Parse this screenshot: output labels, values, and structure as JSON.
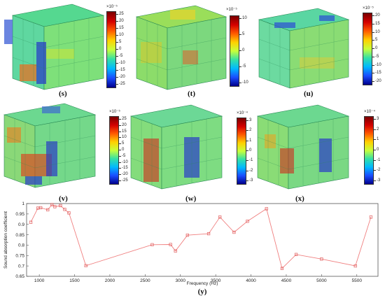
{
  "panels": [
    {
      "label": "(s)",
      "exponent": "×10⁻⁵",
      "ticks": [
        "25",
        "20",
        "15",
        "10",
        "5",
        "0",
        "-5",
        "-10",
        "-15",
        "-20",
        "-25"
      ]
    },
    {
      "label": "(t)",
      "exponent": "×10⁻⁵",
      "ticks": [
        "10",
        "5",
        "0",
        "-5",
        "-10"
      ]
    },
    {
      "label": "(u)",
      "exponent": "×10⁻⁵",
      "ticks": [
        "20",
        "15",
        "10",
        "5",
        "0",
        "-5",
        "-10",
        "-15",
        "-20"
      ]
    },
    {
      "label": "(v)",
      "exponent": "×10⁻⁵",
      "ticks": [
        "25",
        "20",
        "15",
        "10",
        "5",
        "0",
        "-5",
        "-10",
        "-15",
        "-20",
        "-25"
      ]
    },
    {
      "label": "(w)",
      "exponent": "×10⁻⁴",
      "ticks": [
        "3",
        "2",
        "1",
        "0",
        "-1",
        "-2",
        "-3"
      ]
    },
    {
      "label": "(x)",
      "exponent": "×10⁻⁴",
      "ticks": [
        "3",
        "2",
        "1",
        "0",
        "-1",
        "-2",
        "-3"
      ]
    }
  ],
  "colors": {
    "line": "#f08080",
    "marker": "#e06060"
  },
  "chart_data": {
    "type": "line",
    "label": "(y)",
    "xlabel": "Frequency (Hz)",
    "ylabel": "Sound absorption coefficient",
    "xticks": [
      1000,
      1500,
      2000,
      2500,
      3000,
      3500,
      4000,
      4500,
      5000,
      5500
    ],
    "yticks": [
      0.65,
      0.7,
      0.75,
      0.8,
      0.85,
      0.9,
      0.95,
      1
    ],
    "xlim": [
      820,
      5800
    ],
    "ylim": [
      0.65,
      1
    ],
    "grid": false,
    "x": [
      880,
      980,
      1020,
      1120,
      1180,
      1220,
      1300,
      1360,
      1420,
      1660,
      2600,
      2860,
      2930,
      3100,
      3400,
      3560,
      3760,
      3950,
      4220,
      4440,
      4640,
      5000,
      5480,
      5700
    ],
    "y": [
      0.91,
      0.978,
      0.98,
      0.97,
      0.995,
      0.985,
      0.99,
      0.972,
      0.955,
      0.701,
      0.802,
      0.803,
      0.772,
      0.848,
      0.855,
      0.935,
      0.862,
      0.915,
      0.975,
      0.688,
      0.755,
      0.733,
      0.7,
      0.935
    ]
  }
}
